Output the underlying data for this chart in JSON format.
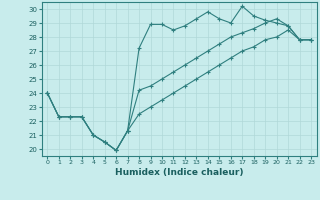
{
  "xlabel": "Humidex (Indice chaleur)",
  "bg_color": "#c8ecec",
  "line_color": "#2f7f7f",
  "grid_color": "#b0d8d8",
  "xlim": [
    -0.5,
    23.5
  ],
  "ylim": [
    19.5,
    30.5
  ],
  "xticks": [
    0,
    1,
    2,
    3,
    4,
    5,
    6,
    7,
    8,
    9,
    10,
    11,
    12,
    13,
    14,
    15,
    16,
    17,
    18,
    19,
    20,
    21,
    22,
    23
  ],
  "yticks": [
    20,
    21,
    22,
    23,
    24,
    25,
    26,
    27,
    28,
    29,
    30
  ],
  "line1_x": [
    0,
    1,
    2,
    3,
    4,
    5,
    6,
    7,
    8,
    9,
    10,
    11,
    12,
    13,
    14,
    15,
    16,
    17,
    18,
    19,
    20,
    21,
    22,
    23
  ],
  "line1_y": [
    24,
    22.3,
    22.3,
    22.3,
    21.0,
    20.5,
    19.9,
    21.3,
    27.2,
    28.9,
    28.9,
    28.5,
    28.8,
    29.3,
    29.8,
    29.3,
    29.0,
    30.2,
    29.5,
    29.2,
    29.0,
    28.8,
    27.8,
    27.8
  ],
  "line2_x": [
    0,
    1,
    2,
    3,
    4,
    5,
    6,
    7,
    8,
    9,
    10,
    11,
    12,
    13,
    14,
    15,
    16,
    17,
    18,
    19,
    20,
    21,
    22,
    23
  ],
  "line2_y": [
    24,
    22.3,
    22.3,
    22.3,
    21.0,
    20.5,
    19.9,
    21.3,
    24.2,
    24.5,
    25.0,
    25.5,
    26.0,
    26.5,
    27.0,
    27.5,
    28.0,
    28.3,
    28.6,
    29.0,
    29.3,
    28.8,
    27.8,
    27.8
  ],
  "line3_x": [
    0,
    1,
    2,
    3,
    4,
    5,
    6,
    7,
    8,
    9,
    10,
    11,
    12,
    13,
    14,
    15,
    16,
    17,
    18,
    19,
    20,
    21,
    22,
    23
  ],
  "line3_y": [
    24,
    22.3,
    22.3,
    22.3,
    21.0,
    20.5,
    19.9,
    21.3,
    22.5,
    23.0,
    23.5,
    24.0,
    24.5,
    25.0,
    25.5,
    26.0,
    26.5,
    27.0,
    27.3,
    27.8,
    28.0,
    28.5,
    27.8,
    27.8
  ]
}
